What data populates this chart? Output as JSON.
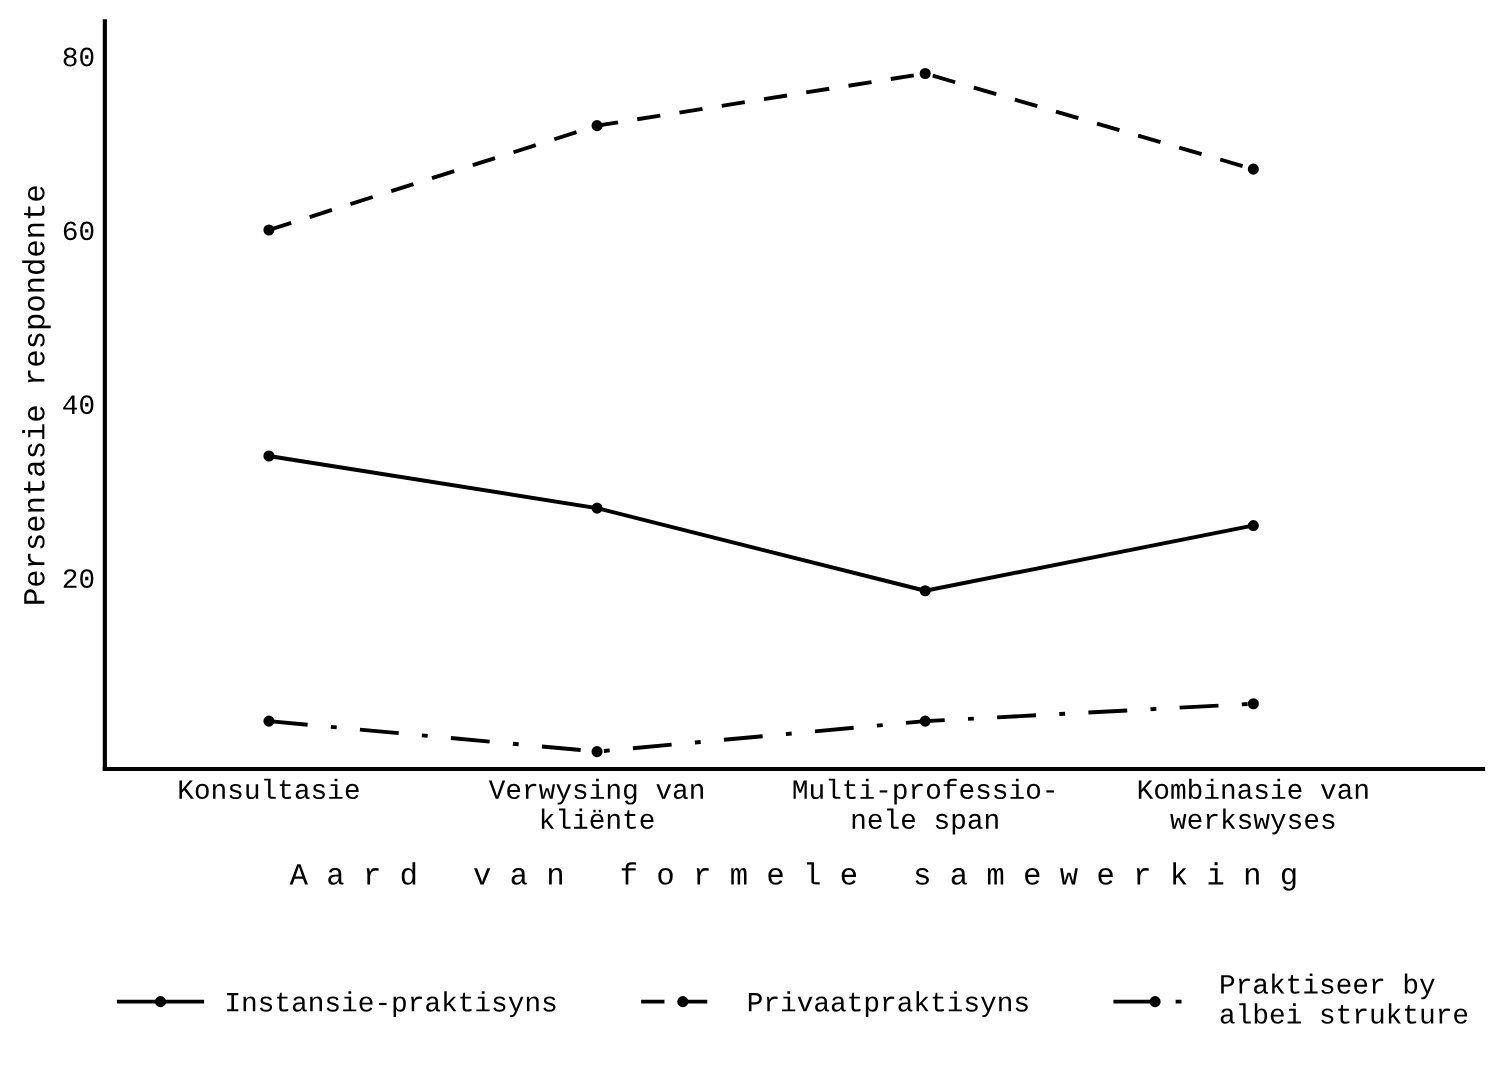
{
  "chart_data": {
    "type": "line",
    "xlabel": "A a r d   v a n   f o r m e l e   s a m e w e r k i n g",
    "ylabel": "Persentasie respondente",
    "categories": [
      "Konsultasie",
      "Verwysing van\nkliënte",
      "Multi-professio-\nnele span",
      "Kombinasie van\nwerkswyses"
    ],
    "series": [
      {
        "name": "Instansie-praktisyns",
        "color": "#000000",
        "line_style": "solid",
        "values": [
          34,
          28,
          18.5,
          26
        ]
      },
      {
        "name": "Privaatpraktisyns",
        "color": "#000000",
        "line_style": "dashed",
        "values": [
          60,
          72,
          78,
          67
        ]
      },
      {
        "name": "Praktiseer by\nalbei strukture",
        "color": "#000000",
        "line_style": "dashdot",
        "values": [
          3.5,
          0,
          3.5,
          5.5
        ]
      }
    ],
    "ylim": [
      -2,
      84
    ],
    "yticks": [
      20,
      40,
      60,
      80
    ],
    "marker": "circle",
    "grid": false,
    "legend": "bottom"
  }
}
